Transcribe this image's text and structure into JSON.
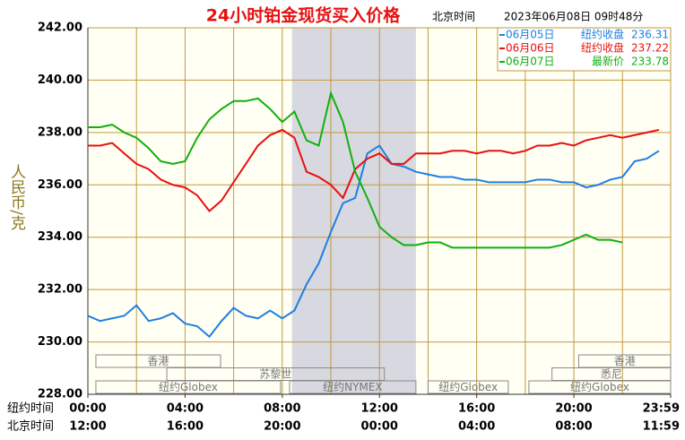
{
  "chart_data": {
    "type": "line",
    "title": "24小时铂金现货买入价格",
    "time_label": "北京时间",
    "timestamp": "2023年06月08日 09时48分",
    "ylabel": "人民币/克",
    "xlim": [
      0,
      23.983
    ],
    "x_grid_step": 2,
    "ylim": [
      228,
      242
    ],
    "yticks": [
      {
        "value": 228,
        "label": "228.00"
      },
      {
        "value": 230,
        "label": "230.00"
      },
      {
        "value": 232,
        "label": "232.00"
      },
      {
        "value": 234,
        "label": "234.00"
      },
      {
        "value": 236,
        "label": "236.00"
      },
      {
        "value": 238,
        "label": "238.00"
      },
      {
        "value": 240,
        "label": "240.00"
      },
      {
        "value": 242,
        "label": "242.00"
      }
    ],
    "grid": true,
    "x_axis_rows": [
      {
        "name": "纽约时间",
        "ticks": [
          {
            "value": 0,
            "label": "00:00"
          },
          {
            "value": 4,
            "label": "04:00"
          },
          {
            "value": 8,
            "label": "08:00"
          },
          {
            "value": 12,
            "label": "12:00"
          },
          {
            "value": 16,
            "label": "16:00"
          },
          {
            "value": 20,
            "label": "20:00"
          },
          {
            "value": 23.983,
            "label": "23:59"
          }
        ]
      },
      {
        "name": "北京时间",
        "ticks": [
          {
            "value": 0,
            "label": "12:00"
          },
          {
            "value": 4,
            "label": "16:00"
          },
          {
            "value": 8,
            "label": "20:00"
          },
          {
            "value": 12,
            "label": "00:00"
          },
          {
            "value": 16,
            "label": "04:00"
          },
          {
            "value": 20,
            "label": "08:00"
          },
          {
            "value": 23.983,
            "label": "11:59"
          }
        ]
      }
    ],
    "highlight": {
      "start": 8.4,
      "end": 13.5
    },
    "sessions": [
      {
        "label": "香港",
        "start": 0.33,
        "end": 5.46,
        "row": 0
      },
      {
        "label": "香港",
        "start": 20.2,
        "end": 23.983,
        "row": 0
      },
      {
        "label": "苏黎世",
        "start": 3.25,
        "end": 12.2,
        "row": 1
      },
      {
        "label": "悉尼",
        "start": 19.1,
        "end": 23.983,
        "row": 1
      },
      {
        "label": "纽约Globex",
        "start": 0.33,
        "end": 7.93,
        "row": 2
      },
      {
        "label": "纽约NYMEX",
        "start": 8.3,
        "end": 13.5,
        "row": 2
      },
      {
        "label": "纽约Globex",
        "start": 14.0,
        "end": 17.3,
        "row": 2
      },
      {
        "label": "纽约Globex",
        "start": 18.15,
        "end": 23.983,
        "row": 2
      }
    ],
    "x": [
      0,
      0.5,
      1,
      1.5,
      2,
      2.5,
      3,
      3.5,
      4,
      4.5,
      5,
      5.5,
      6,
      6.5,
      7,
      7.5,
      8,
      8.5,
      9,
      9.5,
      10,
      10.5,
      11,
      11.5,
      12,
      12.5,
      13,
      13.5,
      14,
      14.5,
      15,
      15.5,
      16,
      16.5,
      17,
      17.5,
      18,
      18.5,
      19,
      19.5,
      20,
      20.5,
      21,
      21.5,
      22,
      22.5,
      23,
      23.5
    ],
    "series": [
      {
        "name": "06月05日",
        "legend_label": "纽约收盘",
        "last_price": "236.31",
        "color": "#1e7fe0",
        "values": [
          231.0,
          230.8,
          230.9,
          231.0,
          231.4,
          230.8,
          230.9,
          231.1,
          230.7,
          230.6,
          230.2,
          230.8,
          231.3,
          231.0,
          230.9,
          231.2,
          230.9,
          231.2,
          232.2,
          233.0,
          234.2,
          235.3,
          235.5,
          237.2,
          237.5,
          236.8,
          236.7,
          236.5,
          236.4,
          236.3,
          236.3,
          236.2,
          236.2,
          236.1,
          236.1,
          236.1,
          236.1,
          236.2,
          236.2,
          236.1,
          236.1,
          235.9,
          236.0,
          236.2,
          236.3,
          236.9,
          237.0,
          237.3
        ]
      },
      {
        "name": "06月06日",
        "legend_label": "纽约收盘",
        "last_price": "237.22",
        "color": "#e81010",
        "values": [
          237.5,
          237.5,
          237.6,
          237.2,
          236.8,
          236.6,
          236.2,
          236.0,
          235.9,
          235.6,
          235.0,
          235.4,
          236.1,
          236.8,
          237.5,
          237.9,
          238.1,
          237.8,
          236.5,
          236.3,
          236.0,
          235.5,
          236.6,
          237.0,
          237.2,
          236.8,
          236.8,
          237.2,
          237.2,
          237.2,
          237.3,
          237.3,
          237.2,
          237.3,
          237.3,
          237.2,
          237.3,
          237.5,
          237.5,
          237.6,
          237.5,
          237.7,
          237.8,
          237.9,
          237.8,
          237.9,
          238.0,
          238.1
        ]
      },
      {
        "name": "06月07日",
        "legend_label": "最新价",
        "last_price": "233.78",
        "color": "#10b010",
        "values": [
          238.2,
          238.2,
          238.3,
          238.0,
          237.8,
          237.4,
          236.9,
          236.8,
          236.9,
          237.8,
          238.5,
          238.9,
          239.2,
          239.2,
          239.3,
          238.9,
          238.4,
          238.8,
          237.7,
          237.5,
          239.5,
          238.4,
          236.5,
          235.5,
          234.4,
          234.0,
          233.7,
          233.7,
          233.8,
          233.8,
          233.6,
          233.6,
          233.6,
          233.6,
          233.6,
          233.6,
          233.6,
          233.6,
          233.6,
          233.7,
          233.9,
          234.1,
          233.9,
          233.9,
          233.8,
          null,
          null,
          null
        ]
      }
    ]
  }
}
